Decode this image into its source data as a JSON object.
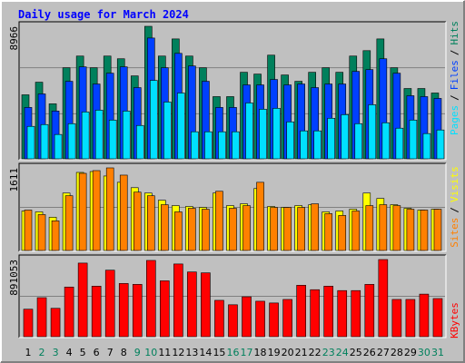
{
  "chart_data": [
    {
      "type": "bar",
      "title": "Daily usage for March 2024",
      "ylim": [
        0,
        8966
      ],
      "yticks": [
        8966
      ],
      "legend_separator": "/",
      "series": [
        {
          "name": "Hits",
          "color": "#00805c",
          "values": [
            4331,
            5185,
            3721,
            6161,
            6954,
            6161,
            6954,
            6771,
            5612,
            8966,
            6954,
            8113,
            6954,
            6161,
            4209,
            4209,
            5856,
            5734,
            7015,
            5673,
            5246,
            5856,
            6161,
            5856,
            6954,
            7320,
            8113,
            6161,
            4758,
            4758,
            4453
          ]
        },
        {
          "name": "Files",
          "color": "#0040ff",
          "values": [
            3477,
            4392,
            3233,
            5246,
            6222,
            5063,
            5795,
            6222,
            4819,
            8174,
            6161,
            7137,
            6283,
            5246,
            3477,
            3477,
            5002,
            5002,
            5368,
            5002,
            5063,
            4819,
            5063,
            5063,
            5917,
            6039,
            6771,
            5795,
            4270,
            4209,
            4087
          ]
        },
        {
          "name": "Pages",
          "color": "#00e0ff",
          "values": [
            2196,
            2318,
            1647,
            2379,
            3172,
            3294,
            2623,
            3233,
            2257,
            5307,
            3843,
            4453,
            1830,
            1830,
            1830,
            1830,
            3782,
            3355,
            3416,
            2501,
            1891,
            1891,
            2745,
            2989,
            2379,
            3660,
            2440,
            2074,
            2623,
            1708,
            1952
          ]
        }
      ]
    },
    {
      "type": "bar",
      "ylim": [
        0,
        1611
      ],
      "yticks": [
        1611
      ],
      "legend_separator": "/",
      "series": [
        {
          "name": "Visits",
          "color": "#ffff00",
          "values": [
            770,
            753,
            648,
            1120,
            1523,
            1540,
            1453,
            1330,
            1225,
            1120,
            980,
            875,
            858,
            840,
            1120,
            875,
            910,
            1208,
            858,
            840,
            875,
            893,
            753,
            770,
            805,
            1120,
            1015,
            893,
            823,
            788,
            805
          ]
        },
        {
          "name": "Sites",
          "color": "#ff8000",
          "values": [
            788,
            700,
            578,
            1068,
            1505,
            1558,
            1611,
            1470,
            1138,
            1068,
            893,
            753,
            823,
            805,
            1155,
            823,
            875,
            1330,
            840,
            840,
            840,
            910,
            718,
            683,
            770,
            875,
            893,
            875,
            805,
            788,
            805
          ]
        }
      ]
    },
    {
      "type": "bar",
      "ylim": [
        0,
        891053
      ],
      "yticks": [
        891053
      ],
      "categories": [
        "1",
        "2",
        "3",
        "4",
        "5",
        "6",
        "7",
        "8",
        "9",
        "10",
        "11",
        "12",
        "13",
        "14",
        "15",
        "16",
        "17",
        "18",
        "19",
        "20",
        "21",
        "22",
        "23",
        "24",
        "25",
        "26",
        "27",
        "28",
        "29",
        "30",
        "31"
      ],
      "category_colors": [
        "#000000",
        "#00805c",
        "#00805c",
        "#000000",
        "#000000",
        "#000000",
        "#000000",
        "#000000",
        "#00805c",
        "#00805c",
        "#000000",
        "#000000",
        "#000000",
        "#000000",
        "#000000",
        "#00805c",
        "#00805c",
        "#000000",
        "#000000",
        "#000000",
        "#000000",
        "#000000",
        "#00805c",
        "#00805c",
        "#000000",
        "#000000",
        "#000000",
        "#000000",
        "#000000",
        "#00805c",
        "#00805c"
      ],
      "series": [
        {
          "name": "KBytes",
          "color": "#ff0000",
          "values": [
            317502,
            450648,
            327744,
            573552,
            850086,
            583794,
            768150,
            614520,
            604278,
            880812,
            645246,
            839844,
            747666,
            737424,
            419922,
            368712,
            460890,
            409680,
            389196,
            430164,
            594036,
            542826,
            583794,
            532584,
            532584,
            604278,
            891053,
            430164,
            430164,
            491616,
            440406
          ]
        }
      ]
    }
  ]
}
